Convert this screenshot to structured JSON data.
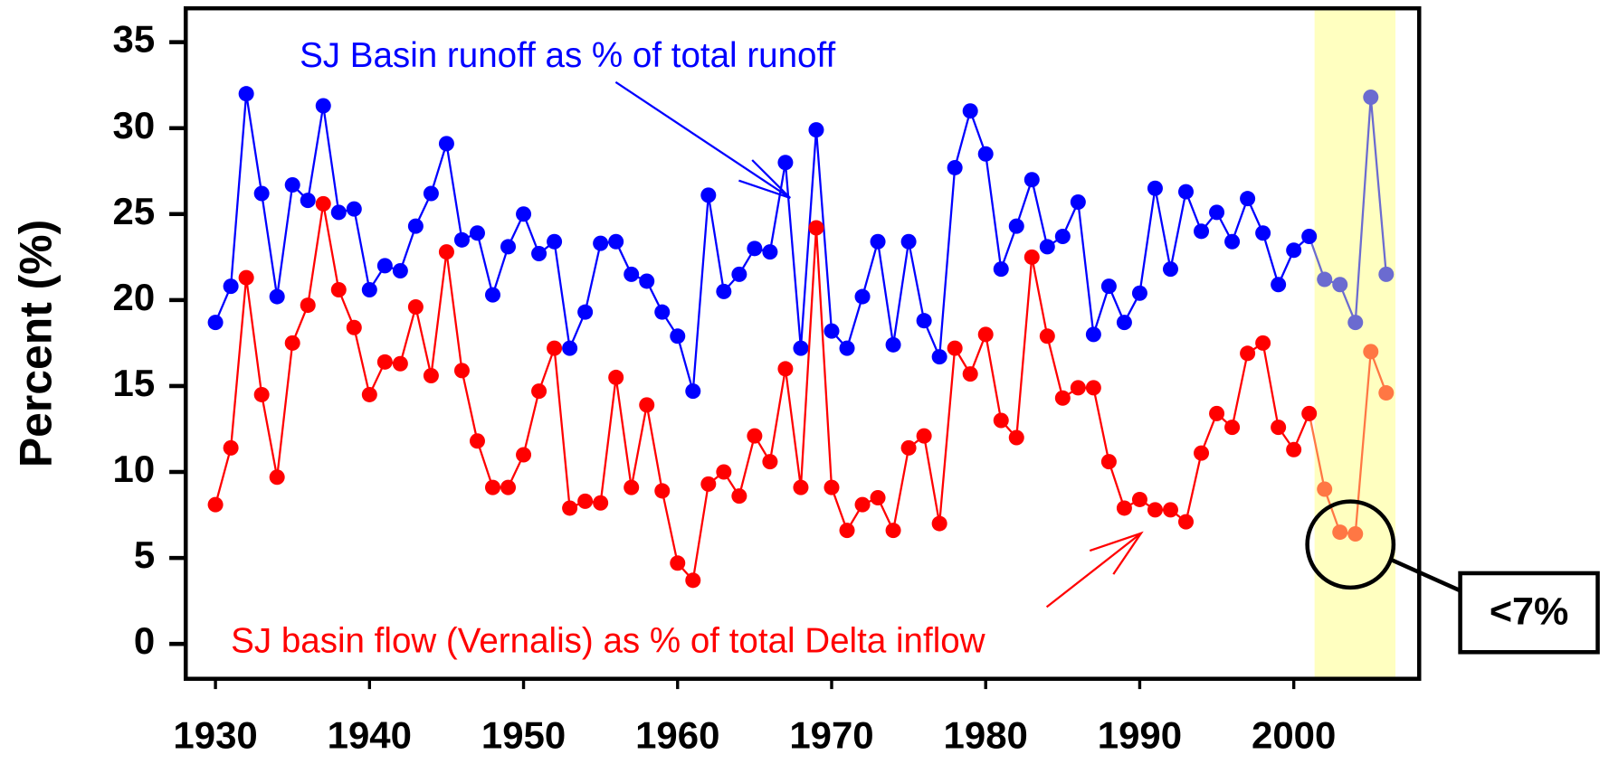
{
  "chart_data": {
    "type": "line",
    "y_label": "Percent (%)",
    "x": [
      1930,
      1931,
      1932,
      1933,
      1934,
      1935,
      1936,
      1937,
      1938,
      1939,
      1940,
      1941,
      1942,
      1943,
      1944,
      1945,
      1946,
      1947,
      1948,
      1949,
      1950,
      1951,
      1952,
      1953,
      1954,
      1955,
      1956,
      1957,
      1958,
      1959,
      1960,
      1961,
      1962,
      1963,
      1964,
      1965,
      1966,
      1967,
      1968,
      1969,
      1970,
      1971,
      1972,
      1973,
      1974,
      1975,
      1976,
      1977,
      1978,
      1979,
      1980,
      1981,
      1982,
      1983,
      1984,
      1985,
      1986,
      1987,
      1988,
      1989,
      1990,
      1991,
      1992,
      1993,
      1994,
      1995,
      1996,
      1997,
      1998,
      1999,
      2000,
      2001,
      2002,
      2003,
      2004,
      2005,
      2006
    ],
    "xlim": [
      1928.07,
      2008.14
    ],
    "xticks": [
      1930,
      1940,
      1950,
      1960,
      1970,
      1980,
      1990,
      2000
    ],
    "ylim": [
      -2.03,
      36.97
    ],
    "yticks": [
      0,
      5,
      10,
      15,
      20,
      25,
      30,
      35
    ],
    "series": [
      {
        "name": "SJ Basin runoff as % of total runoff",
        "color": "#0000ff",
        "faded_color": "#6b6bd0",
        "values": [
          18.7,
          20.8,
          32.0,
          26.2,
          20.2,
          26.7,
          25.8,
          31.3,
          25.1,
          25.3,
          20.6,
          22.0,
          21.7,
          24.3,
          26.2,
          29.1,
          23.5,
          23.9,
          20.3,
          23.1,
          25.0,
          22.7,
          23.4,
          17.2,
          19.3,
          23.3,
          23.4,
          21.5,
          21.1,
          19.3,
          17.9,
          14.7,
          26.1,
          20.5,
          21.5,
          23.0,
          22.8,
          28.0,
          17.2,
          29.9,
          18.2,
          17.2,
          20.2,
          23.4,
          17.4,
          23.4,
          18.8,
          16.7,
          27.7,
          31.0,
          28.5,
          21.8,
          24.3,
          27.0,
          23.1,
          23.7,
          25.7,
          18.0,
          20.8,
          18.7,
          20.4,
          26.5,
          21.8,
          26.3,
          24.0,
          25.1,
          23.4,
          25.9,
          23.9,
          20.9,
          22.9,
          23.7,
          21.2,
          20.9,
          18.7,
          31.8,
          21.5
        ]
      },
      {
        "name": "SJ basin flow (Vernalis) as % of total Delta inflow",
        "color": "#ff0000",
        "faded_color": "#ff7744",
        "values": [
          8.1,
          11.4,
          21.3,
          14.5,
          9.7,
          17.5,
          19.7,
          25.6,
          20.6,
          18.4,
          14.5,
          16.4,
          16.3,
          19.6,
          15.6,
          22.8,
          15.9,
          11.8,
          9.1,
          9.1,
          11.0,
          14.7,
          17.2,
          7.9,
          8.3,
          8.2,
          15.5,
          9.1,
          13.9,
          8.9,
          4.7,
          3.7,
          9.3,
          10.0,
          8.6,
          12.1,
          10.6,
          16.0,
          9.1,
          24.2,
          9.1,
          6.6,
          8.1,
          8.5,
          6.6,
          11.4,
          12.1,
          7.0,
          17.2,
          15.7,
          18.0,
          13.0,
          12.0,
          22.5,
          17.9,
          14.3,
          14.9,
          14.9,
          10.6,
          7.9,
          8.4,
          7.8,
          7.8,
          7.1,
          11.1,
          13.4,
          12.6,
          16.9,
          17.5,
          12.6,
          11.3,
          13.4,
          9.0,
          6.5,
          6.4,
          17.0,
          14.6
        ]
      }
    ],
    "highlight": {
      "from": 2001.35,
      "to": 2006.6,
      "color": "#ffffc0"
    },
    "callout": "<7%"
  }
}
